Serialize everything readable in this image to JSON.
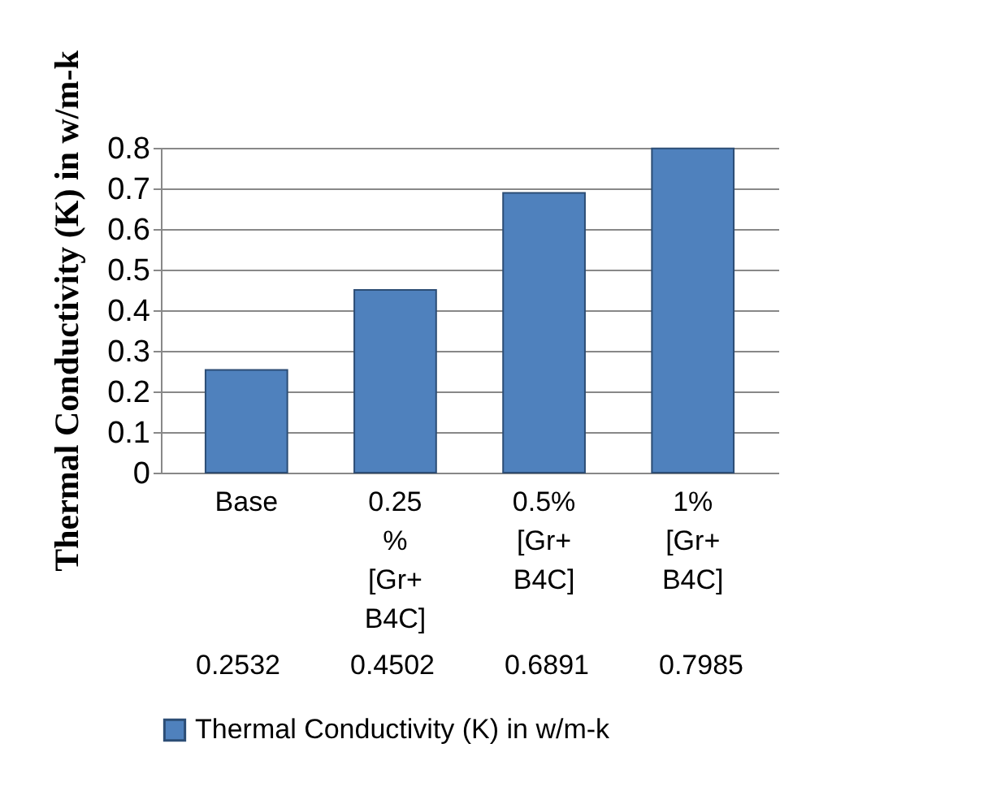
{
  "chart_data": {
    "type": "bar",
    "ylabel": "Thermal Conductivity (K) in w/m-k",
    "categories": [
      "Base",
      "0.25 % [Gr+ B4C]",
      "0.5% [Gr+ B4C]",
      "1% [Gr+ B4C]"
    ],
    "series": [
      {
        "name": "Thermal Conductivity (K) in w/m-k",
        "color": "#4f81bd",
        "values": [
          0.2532,
          0.4502,
          0.6891,
          0.7985
        ]
      }
    ],
    "ylim": [
      0,
      0.8
    ],
    "yticks": [
      0,
      0.1,
      0.2,
      0.3,
      0.4,
      0.5,
      0.6,
      0.7,
      0.8
    ],
    "grid": "y",
    "legend": "bottom",
    "data_labels": true
  }
}
